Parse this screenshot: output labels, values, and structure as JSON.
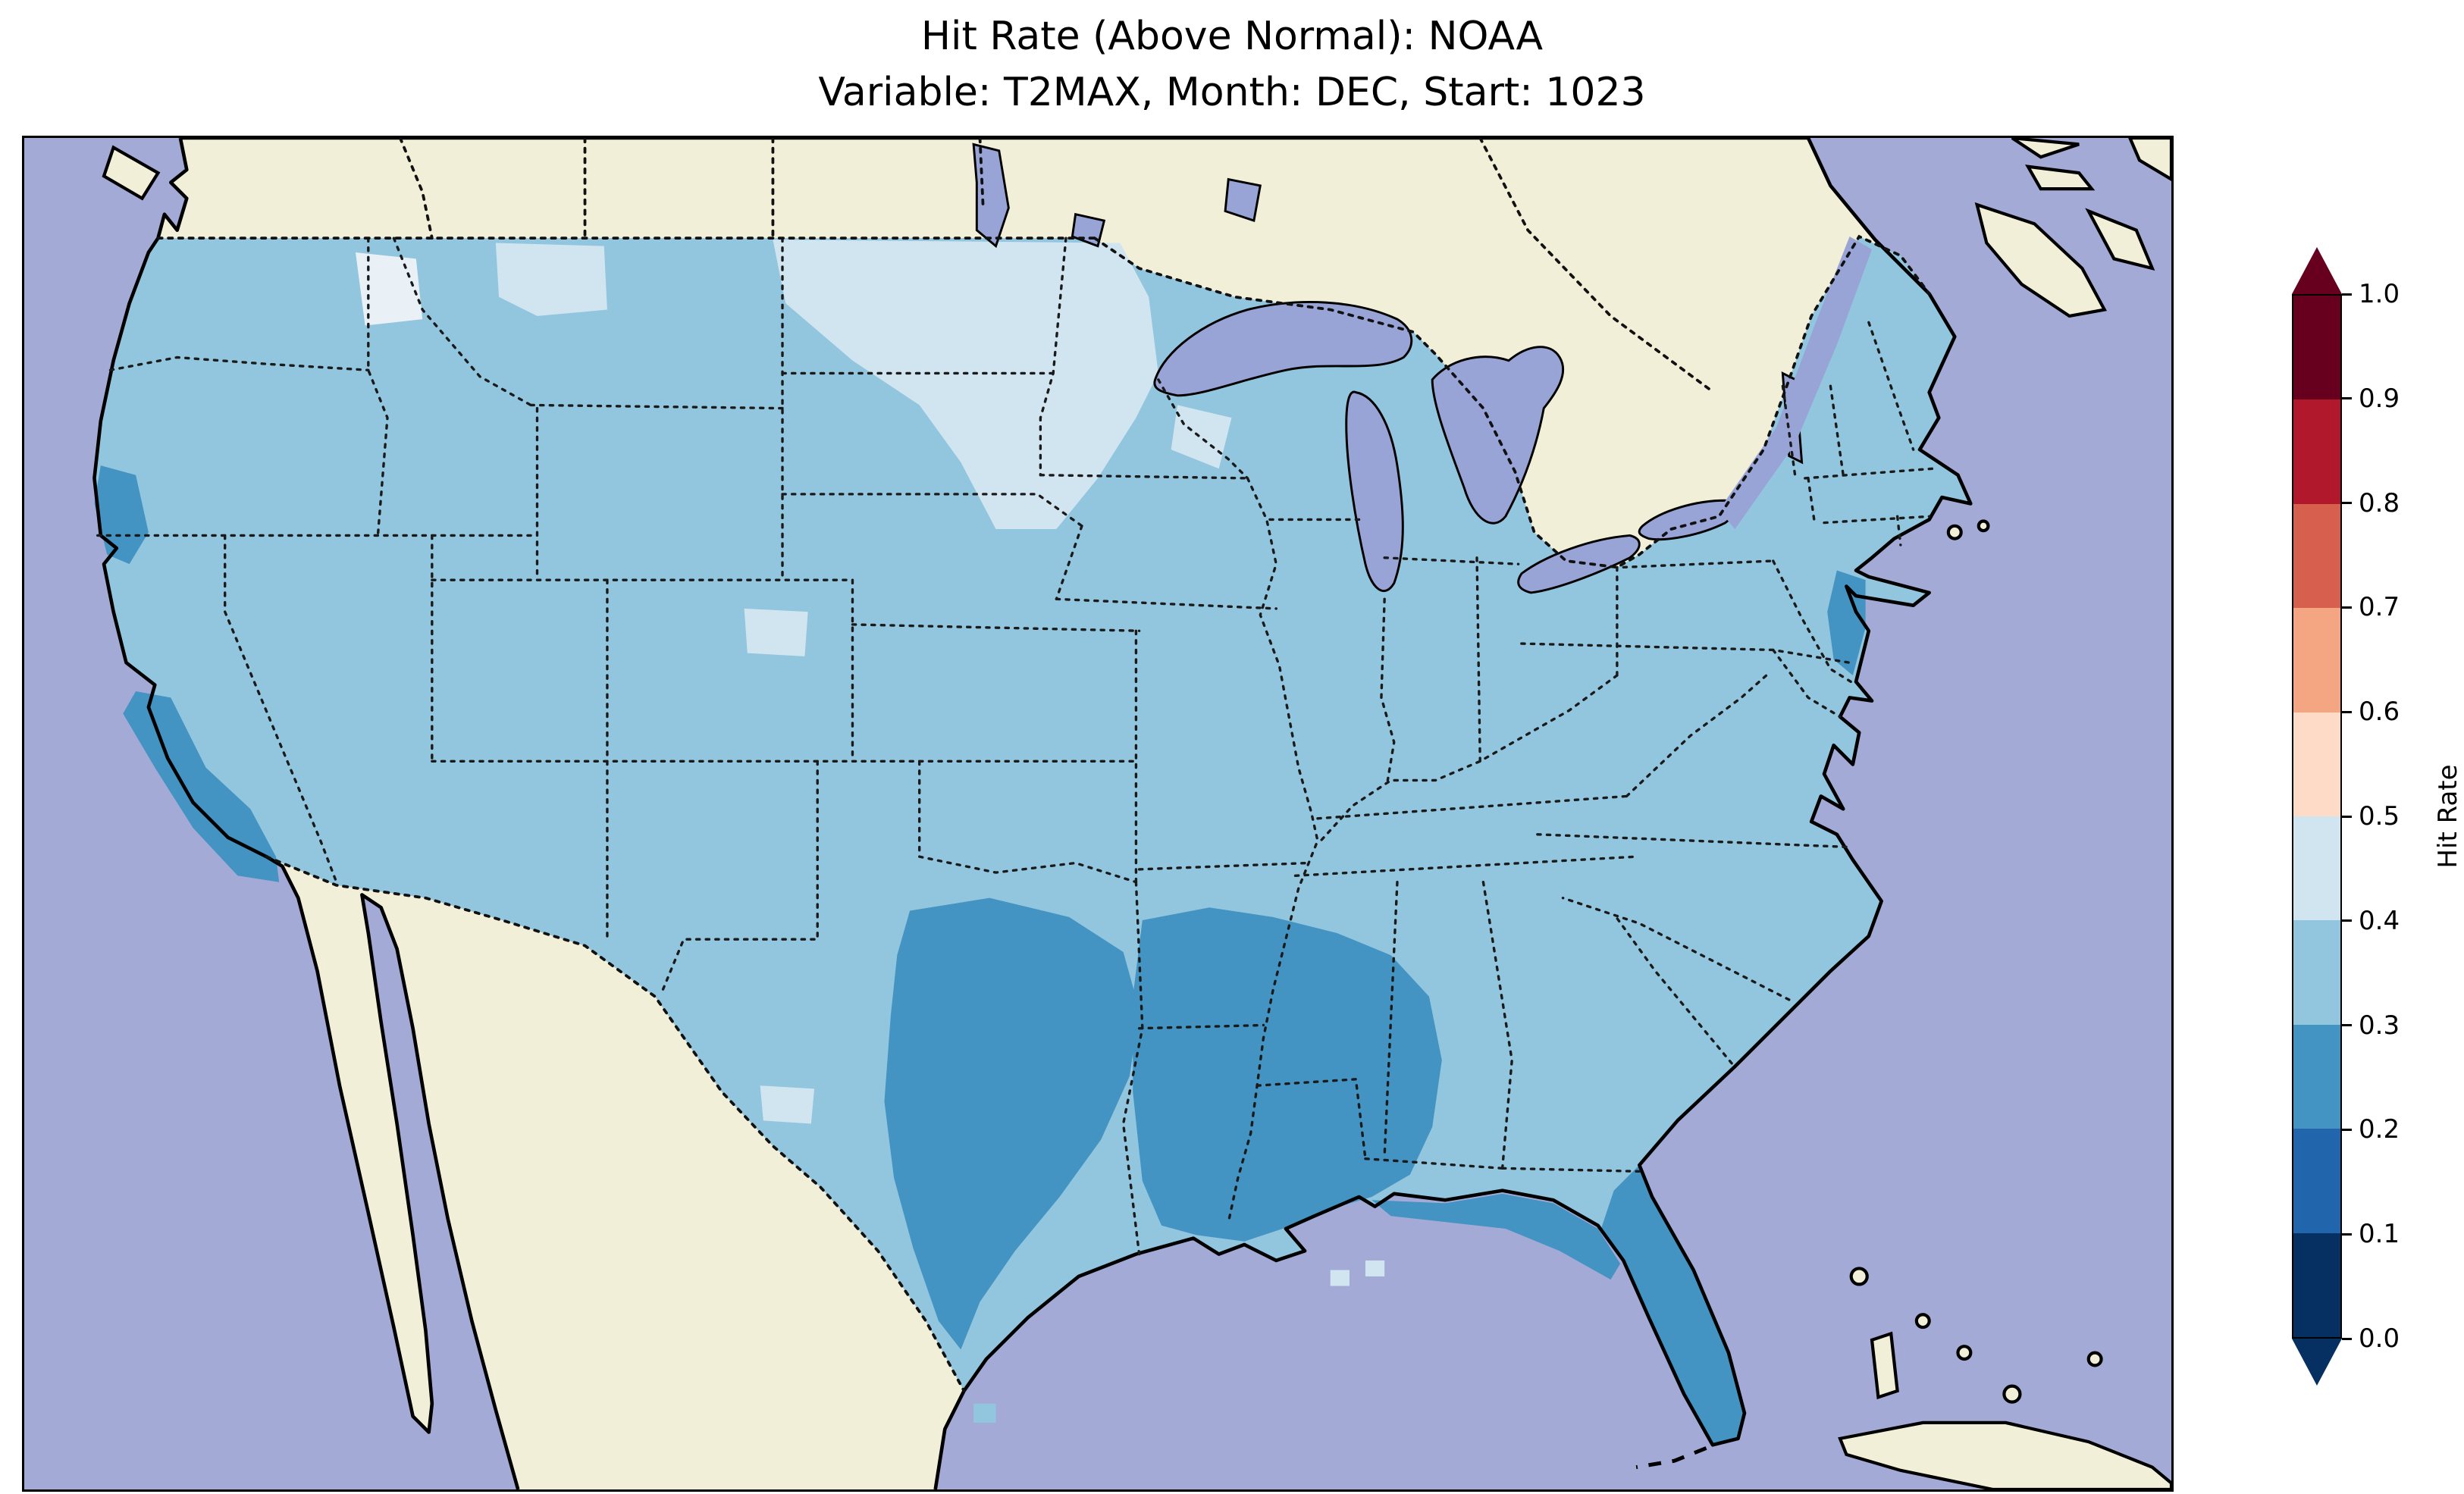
{
  "title": {
    "line1": "Hit Rate (Above Normal): NOAA",
    "line2": "Variable: T2MAX, Month: DEC, Start: 1023"
  },
  "colorbar": {
    "label": "Hit Rate",
    "ticks": [
      "1.0",
      "0.9",
      "0.8",
      "0.7",
      "0.6",
      "0.5",
      "0.4",
      "0.3",
      "0.2",
      "0.1",
      "0.0"
    ],
    "colors_bottom_to_top": [
      "#053061",
      "#2166ac",
      "#4393c3",
      "#92c5de",
      "#d1e5f0",
      "#fddbc7",
      "#f4a582",
      "#d6604d",
      "#b2182b",
      "#67001f"
    ],
    "under_color": "#053061",
    "over_color": "#67001f"
  },
  "map": {
    "colors": {
      "ocean": "#a3aad6",
      "land": "#f2efd9",
      "lake": "#98a3d6",
      "base": "#92c5de",
      "bin_02_03": "#4393c3",
      "bin_04_05": "#d1e5f0",
      "near_white": "#e9f1f7"
    }
  },
  "chart_data": {
    "type": "heatmap",
    "title": "Hit Rate (Above Normal): NOAA",
    "subtitle": "Variable: T2MAX, Month: DEC, Start: 1023",
    "metric": "Hit Rate (Above Normal)",
    "source": "NOAA",
    "variable": "T2MAX",
    "month": "DEC",
    "start": "1023",
    "region_shown": "Continental United States with surrounding Canada, Mexico, Gulf of Mexico, Caribbean",
    "colorbar_label": "Hit Rate",
    "colorbar_range": [
      0.0,
      1.0
    ],
    "colorbar_tick_step": 0.1,
    "colormap": "RdBu reversed, discrete 10 bins with extend arrows both ends",
    "colormap_bins": [
      {
        "range": "0.0-0.1",
        "color": "#053061"
      },
      {
        "range": "0.1-0.2",
        "color": "#2166ac"
      },
      {
        "range": "0.2-0.3",
        "color": "#4393c3"
      },
      {
        "range": "0.3-0.4",
        "color": "#92c5de"
      },
      {
        "range": "0.4-0.5",
        "color": "#d1e5f0"
      },
      {
        "range": "0.5-0.6",
        "color": "#fddbc7"
      },
      {
        "range": "0.6-0.7",
        "color": "#f4a582"
      },
      {
        "range": "0.7-0.8",
        "color": "#d6604d"
      },
      {
        "range": "0.8-0.9",
        "color": "#b2182b"
      },
      {
        "range": "0.9-1.0",
        "color": "#67001f"
      }
    ],
    "observed_regions": [
      {
        "region": "Most of the continental United States",
        "hit_rate_bin": "0.3-0.4"
      },
      {
        "region": "Minnesota and eastern Dakotas (Upper Midwest)",
        "hit_rate_bin": "0.4-0.5"
      },
      {
        "region": "Northern Montana patch",
        "hit_rate_bin": "0.4-0.5"
      },
      {
        "region": "Northwest Montana small spot",
        "hit_rate_bin": "~0.45-0.5 (near-white)"
      },
      {
        "region": "Central Wisconsin small patch",
        "hit_rate_bin": "0.4-0.5"
      },
      {
        "region": "Utah-Wyoming border small patch",
        "hit_rate_bin": "0.4-0.5"
      },
      {
        "region": "West Texas small patch",
        "hit_rate_bin": "0.4-0.5"
      },
      {
        "region": "Central and eastern Texas",
        "hit_rate_bin": "0.2-0.3"
      },
      {
        "region": "Louisiana, Mississippi, western Alabama Gulf region",
        "hit_rate_bin": "0.2-0.3"
      },
      {
        "region": "Florida peninsula and panhandle coast",
        "hit_rate_bin": "0.2-0.3"
      },
      {
        "region": "Central California coast",
        "hit_rate_bin": "0.2-0.3"
      },
      {
        "region": "Southern California coast",
        "hit_rate_bin": "0.2-0.3"
      },
      {
        "region": "New Jersey coastal patch",
        "hit_rate_bin": "0.2-0.3"
      }
    ]
  }
}
